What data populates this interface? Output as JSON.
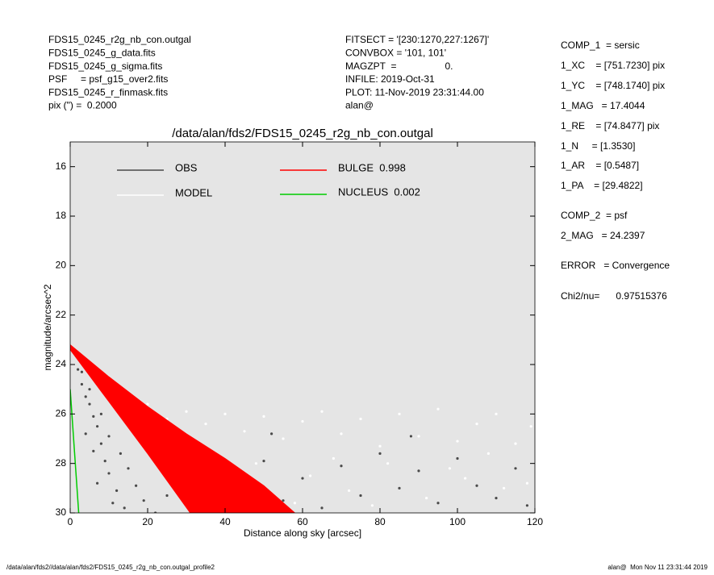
{
  "info_left": [
    "FDS15_0245_r2g_nb_con.outgal",
    "FDS15_0245_g_data.fits",
    "FDS15_0245_g_sigma.fits",
    "PSF     = psf_g15_over2.fits",
    "FDS15_0245_r_finmask.fits",
    "pix (\") =  0.2000"
  ],
  "info_middle": [
    "FITSECT = '[230:1270,227:1267]'",
    "CONVBOX = '101, 101'",
    "MAGZPT  =                  0.",
    "INFILE: 2019-Oct-31",
    "PLOT: 11-Nov-2019 23:31:44.00",
    "alan@"
  ],
  "info_right": [
    "COMP_1  = sersic",
    "1_XC    = [751.7230] pix",
    "1_YC    = [748.1740] pix",
    "1_MAG   = 17.4044",
    "1_RE    = [74.8477] pix",
    "1_N     = [1.3530]",
    "1_AR    = [0.5487]",
    "1_PA    = [29.4822]",
    "COMP_2  = psf",
    "2_MAG   = 24.2397",
    "ERROR   = Convergence",
    "Chi2/nu=      0.97515376"
  ],
  "footer_left": "/data/alan/fds2//data/alan/fds2/FDS15_0245_r2g_nb_con.outgal_profile2",
  "footer_right": "alan@  Mon Nov 11 23:31:44 2019",
  "chart_data": {
    "type": "scatter",
    "title": "/data/alan/fds2/FDS15_0245_r2g_nb_con.outgal",
    "x_label": "Distance along sky [arcsec]",
    "y_label": "magnitude/arcsec^2",
    "xlim": [
      0,
      120
    ],
    "xticks": [
      0,
      20,
      40,
      60,
      80,
      100,
      120
    ],
    "ylim": [
      15,
      30
    ],
    "yticks": [
      16,
      18,
      20,
      22,
      24,
      26,
      28,
      30
    ],
    "y_inverted": true,
    "background": "#e5e5e5",
    "series": [
      {
        "name": "OBS",
        "color": "#4a4a4a",
        "kind": "points",
        "x": [
          2,
          3,
          4,
          5,
          6,
          7,
          4,
          8,
          6,
          9,
          10,
          7,
          12,
          11,
          14,
          3,
          5,
          8,
          10,
          13,
          15,
          17,
          19,
          22,
          25,
          30,
          35,
          40,
          45,
          50,
          55,
          60,
          65,
          70,
          75,
          80,
          85,
          90,
          95,
          100,
          105,
          110,
          115,
          118,
          52,
          88
        ],
        "values": [
          24.2,
          24.8,
          25.3,
          25.6,
          26.1,
          26.5,
          26.8,
          27.2,
          27.5,
          27.9,
          28.4,
          28.8,
          29.1,
          29.6,
          29.8,
          24.3,
          25.0,
          26.0,
          26.9,
          27.6,
          28.2,
          28.9,
          29.5,
          30,
          29.3,
          28.7,
          29.6,
          28.4,
          29.2,
          27.9,
          29.5,
          28.6,
          29.8,
          28.1,
          29.3,
          27.6,
          29.0,
          28.3,
          29.6,
          27.8,
          28.9,
          29.4,
          28.2,
          29.7,
          26.8,
          26.9
        ]
      },
      {
        "name": "MODEL",
        "color": "#ffffff",
        "kind": "points",
        "x": [
          8,
          12,
          15,
          20,
          25,
          30,
          35,
          40,
          45,
          50,
          55,
          60,
          65,
          70,
          75,
          80,
          85,
          90,
          95,
          100,
          105,
          110,
          115,
          119,
          62,
          72,
          82,
          92,
          102,
          112,
          68,
          98,
          58,
          78,
          108,
          118,
          42,
          48,
          33,
          28
        ],
        "values": [
          25.0,
          25.4,
          25.8,
          25.6,
          26.2,
          25.9,
          26.4,
          26.0,
          26.7,
          26.1,
          27.0,
          26.3,
          25.9,
          26.8,
          26.2,
          27.3,
          26.0,
          26.9,
          25.8,
          27.1,
          26.4,
          26.0,
          27.2,
          26.5,
          28.5,
          29.1,
          28.0,
          29.4,
          28.6,
          29.0,
          27.8,
          28.2,
          29.6,
          29.7,
          27.6,
          28.8,
          29.0,
          28.0,
          29.8,
          27.4
        ]
      },
      {
        "name": "BULGE  0.998",
        "color": "#ff0000",
        "kind": "band",
        "x": [
          0,
          10,
          20,
          30,
          40,
          50,
          58,
          31,
          20,
          10,
          0
        ],
        "values": [
          23.2,
          24.5,
          25.7,
          26.8,
          27.8,
          28.9,
          30,
          30,
          27.6,
          25.5,
          23.4
        ]
      },
      {
        "name": "NUCLEUS  0.002",
        "color": "#00cc00",
        "kind": "line",
        "x": [
          0,
          2.2
        ],
        "values": [
          25,
          30
        ]
      }
    ]
  }
}
